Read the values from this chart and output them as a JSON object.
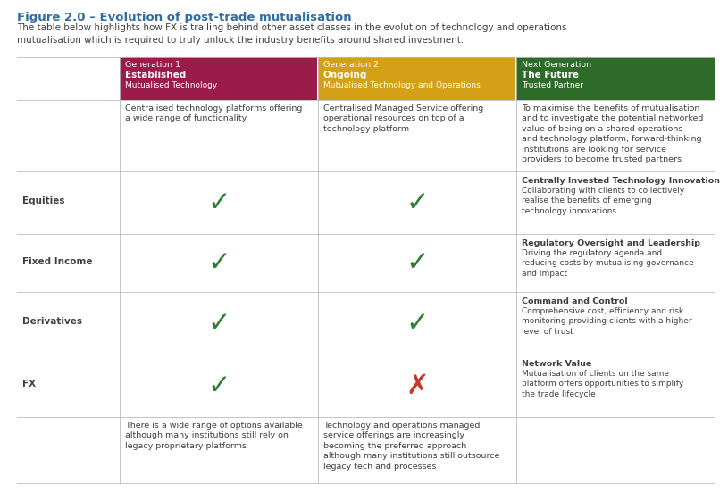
{
  "title": "Figure 2.0 – Evolution of post-trade mutualisation",
  "title_color": "#2E6DA4",
  "subtitle": "The table below highlights how FX is trailing behind other asset classes in the evolution of technology and operations\nmutualisation which is required to truly unlock the industry benefits around shared investment.",
  "subtitle_color": "#404040",
  "bg_color": "#ffffff",
  "col_headers": [
    {
      "line1": "Generation 1",
      "line2": "Established",
      "line3": "Mutualised Technology",
      "bg": "#9B1B4B",
      "fg": "#ffffff"
    },
    {
      "line1": "Generation 2",
      "line2": "Ongoing",
      "line3": "Mutualised Technology and Operations",
      "bg": "#D4A017",
      "fg": "#ffffff"
    },
    {
      "line1": "Next Generation",
      "line2": "The Future",
      "line3": "Trusted Partner",
      "bg": "#2E6B28",
      "fg": "#ffffff"
    }
  ],
  "col1_top_text": "Centralised technology platforms offering\na wide range of functionality",
  "col2_top_text": "Centralised Managed Service offering\noperational resources on top of a\ntechnology platform",
  "col3_top_text": "To maximise the benefits of mutualisation\nand to investigate the potential networked\nvalue of being on a shared operations\nand technology platform, forward-thinking\ninstitutions are looking for service\nproviders to become trusted partners",
  "col1_bottom_text": "There is a wide range of options available\nalthough many institutions still rely on\nlegacy proprietary platforms",
  "col2_bottom_text": "Technology and operations managed\nservice offerings are increasingly\nbecoming the preferred approach\nalthough many institutions still outsource\nlegacy tech and processes",
  "next_gen_rows": [
    {
      "bold": "Centrally Invested Technology Innovation",
      "normal": "Collaborating with clients to collectively\nrealise the benefits of emerging\ntechnology innovations"
    },
    {
      "bold": "Regulatory Oversight and Leadership",
      "normal": "Driving the regulatory agenda and\nreducing costs by mutualising governance\nand impact"
    },
    {
      "bold": "Command and Control",
      "normal": "Comprehensive cost, efficiency and risk\nmonitoring providing clients with a higher\nlevel of trust"
    },
    {
      "bold": "Network Value",
      "normal": "Mutualisation of clients on the same\nplatform offers opportunities to simplify\nthe trade lifecycle"
    }
  ],
  "row_labels": [
    "Equities",
    "Fixed Income",
    "Derivatives",
    "FX"
  ],
  "checks": {
    "Equities": {
      "gen1": true,
      "gen2": true
    },
    "Fixed Income": {
      "gen1": true,
      "gen2": true
    },
    "Derivatives": {
      "gen1": true,
      "gen2": true
    },
    "FX": {
      "gen1": true,
      "gen2": false
    }
  },
  "check_color": "#2E7D32",
  "cross_color": "#C0392B",
  "line_color": "#BBBBBB",
  "text_color": "#404040"
}
